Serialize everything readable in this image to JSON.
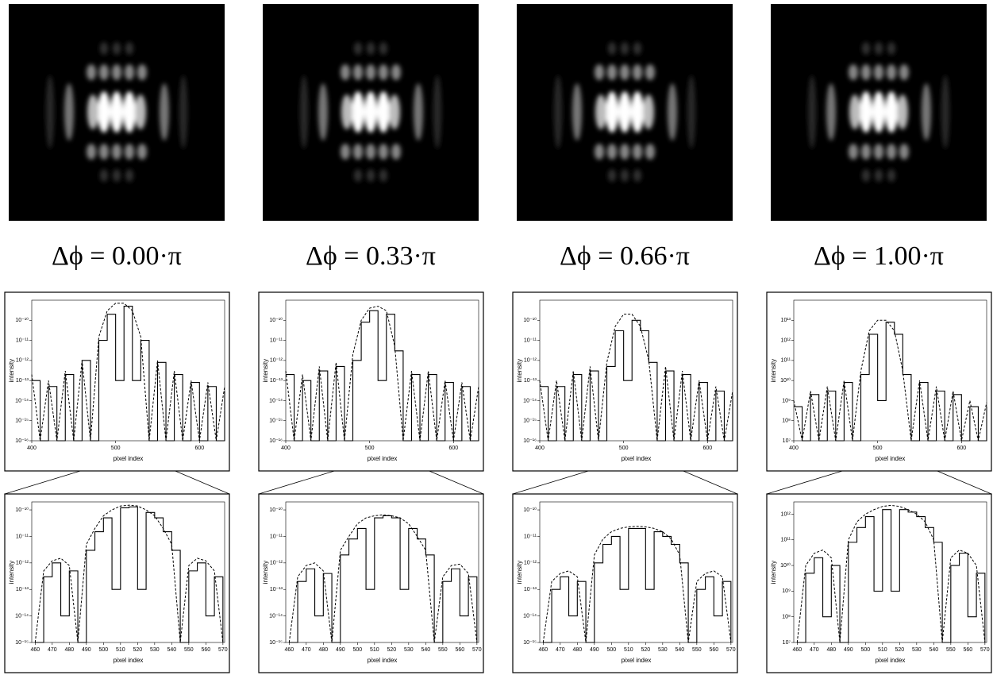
{
  "labels": [
    "Δϕ = 0.00·π",
    "Δϕ = 0.33·π",
    "Δϕ = 0.66·π",
    "Δϕ = 1.00·π"
  ],
  "chart_data": [
    {
      "type": "line",
      "x_label": "pixel index",
      "y_label": "intensity",
      "log_y": true,
      "x": [
        400,
        410,
        420,
        430,
        440,
        450,
        460,
        470,
        480,
        490,
        500,
        510,
        520,
        530,
        540,
        550,
        560,
        570,
        580,
        590,
        600,
        610,
        620,
        630
      ],
      "xlim": [
        400,
        630
      ],
      "xticks": [
        400,
        500,
        600
      ],
      "ylim": [
        1e-16,
        1e-09
      ],
      "yticks": [
        {
          "value": 1e-16,
          "label": "10⁻¹⁶"
        },
        {
          "value": 1e-15,
          "label": "10⁻¹⁵"
        },
        {
          "value": 1e-14,
          "label": "10⁻¹⁴"
        },
        {
          "value": 1e-13,
          "label": "10⁻¹³"
        },
        {
          "value": 1e-12,
          "label": "10⁻¹²"
        },
        {
          "value": 1e-11,
          "label": "10⁻¹¹"
        },
        {
          "value": 1e-10,
          "label": "10⁻¹⁰"
        }
      ],
      "series": [
        {
          "style": "step",
          "color": "#000000",
          "values": [
            1e-13,
            1e-16,
            5e-14,
            1e-16,
            2e-13,
            1e-16,
            1e-12,
            1e-16,
            1e-11,
            2e-10,
            1e-13,
            5e-10,
            1e-13,
            1e-11,
            1e-16,
            8e-13,
            1e-16,
            2e-13,
            1e-16,
            8e-14,
            1e-16,
            5e-14,
            1e-16,
            3e-14
          ]
        },
        {
          "style": "dashed",
          "color": "#000000",
          "values": [
            2e-13,
            1e-16,
            1e-13,
            1e-16,
            3e-13,
            1e-16,
            1e-12,
            1e-16,
            1.5e-11,
            3e-10,
            7e-10,
            7e-10,
            3e-10,
            1.5e-11,
            1e-16,
            1e-12,
            1e-16,
            3e-13,
            1e-16,
            1e-13,
            1e-16,
            8e-14,
            1e-16,
            5e-14
          ]
        }
      ]
    },
    {
      "type": "line",
      "x_label": "pixel index",
      "y_label": "intensity",
      "log_y": true,
      "x": [
        400,
        410,
        420,
        430,
        440,
        450,
        460,
        470,
        480,
        490,
        500,
        510,
        520,
        530,
        540,
        550,
        560,
        570,
        580,
        590,
        600,
        610,
        620,
        630
      ],
      "xlim": [
        400,
        630
      ],
      "xticks": [
        400,
        500,
        600
      ],
      "ylim": [
        1e-16,
        1e-09
      ],
      "yticks": [
        {
          "value": 1e-16,
          "label": "10⁻¹⁶"
        },
        {
          "value": 1e-15,
          "label": "10⁻¹⁵"
        },
        {
          "value": 1e-14,
          "label": "10⁻¹⁴"
        },
        {
          "value": 1e-13,
          "label": "10⁻¹³"
        },
        {
          "value": 1e-12,
          "label": "10⁻¹²"
        },
        {
          "value": 1e-11,
          "label": "10⁻¹¹"
        },
        {
          "value": 1e-10,
          "label": "10⁻¹⁰"
        }
      ],
      "series": [
        {
          "style": "step",
          "color": "#000000",
          "values": [
            2e-13,
            1e-16,
            1e-13,
            1e-16,
            3e-13,
            1e-16,
            5e-13,
            1e-16,
            1e-12,
            8e-11,
            3e-10,
            1e-13,
            2e-10,
            3e-12,
            1e-16,
            2e-13,
            1e-16,
            2e-13,
            1e-16,
            8e-14,
            1e-16,
            5e-14,
            1e-16,
            3e-14
          ]
        },
        {
          "style": "dashed",
          "color": "#000000",
          "values": [
            3e-13,
            1e-16,
            2e-13,
            1e-16,
            5e-13,
            1e-16,
            8e-13,
            1e-16,
            2e-12,
            1e-10,
            4e-10,
            5e-10,
            3e-10,
            5e-12,
            1e-16,
            3e-13,
            1e-16,
            3e-13,
            1e-16,
            1e-13,
            1e-16,
            8e-14,
            1e-16,
            5e-14
          ]
        }
      ]
    },
    {
      "type": "line",
      "x_label": "pixel index",
      "y_label": "intensity",
      "log_y": true,
      "x": [
        400,
        410,
        420,
        430,
        440,
        450,
        460,
        470,
        480,
        490,
        500,
        510,
        520,
        530,
        540,
        550,
        560,
        570,
        580,
        590,
        600,
        610,
        620,
        630
      ],
      "xlim": [
        400,
        630
      ],
      "xticks": [
        400,
        500,
        600
      ],
      "ylim": [
        1e-16,
        1e-09
      ],
      "yticks": [
        {
          "value": 1e-16,
          "label": "10⁻¹⁶"
        },
        {
          "value": 1e-15,
          "label": "10⁻¹⁵"
        },
        {
          "value": 1e-14,
          "label": "10⁻¹⁴"
        },
        {
          "value": 1e-13,
          "label": "10⁻¹³"
        },
        {
          "value": 1e-12,
          "label": "10⁻¹²"
        },
        {
          "value": 1e-11,
          "label": "10⁻¹¹"
        },
        {
          "value": 1e-10,
          "label": "10⁻¹⁰"
        }
      ],
      "series": [
        {
          "style": "step",
          "color": "#000000",
          "values": [
            5e-14,
            1e-16,
            5e-14,
            1e-16,
            2e-13,
            1e-16,
            3e-13,
            1e-16,
            5e-13,
            3e-11,
            1e-13,
            1e-10,
            3e-11,
            8e-13,
            1e-16,
            3e-13,
            1e-16,
            2e-13,
            1e-16,
            8e-14,
            1e-16,
            3e-14,
            1e-16,
            2e-14
          ]
        },
        {
          "style": "dashed",
          "color": "#000000",
          "values": [
            1e-13,
            1e-16,
            1e-13,
            1e-16,
            3e-13,
            1e-16,
            5e-13,
            1e-16,
            8e-13,
            5e-11,
            2e-10,
            2e-10,
            5e-11,
            1e-12,
            1e-16,
            5e-13,
            1e-16,
            3e-13,
            1e-16,
            1e-13,
            1e-16,
            5e-14,
            1e-16,
            3e-14
          ]
        }
      ]
    },
    {
      "type": "line",
      "x_label": "pixel index",
      "y_label": "intensity",
      "log_y": true,
      "x": [
        400,
        410,
        420,
        430,
        440,
        450,
        460,
        470,
        480,
        490,
        500,
        510,
        520,
        530,
        540,
        550,
        560,
        570,
        580,
        590,
        600,
        610,
        620,
        630
      ],
      "xlim": [
        400,
        630
      ],
      "xticks": [
        400,
        500,
        600
      ],
      "ylim": [
        10000000.0,
        100000000000000.0
      ],
      "yticks": [
        {
          "value": 10000000.0,
          "label": "10⁷"
        },
        {
          "value": 100000000.0,
          "label": "10⁸"
        },
        {
          "value": 1000000000.0,
          "label": "10⁹"
        },
        {
          "value": 10000000000.0,
          "label": "10¹⁰"
        },
        {
          "value": 100000000000.0,
          "label": "10¹¹"
        },
        {
          "value": 1000000000000.0,
          "label": "10¹²"
        },
        {
          "value": 10000000000000.0,
          "label": "10¹³"
        }
      ],
      "series": [
        {
          "style": "step",
          "color": "#000000",
          "values": [
            500000000.0,
            10000000.0,
            2000000000.0,
            10000000.0,
            3000000000.0,
            10000000.0,
            8000000000.0,
            10000000.0,
            20000000000.0,
            2000000000000.0,
            1000000000.0,
            8000000000000.0,
            2000000000000.0,
            20000000000.0,
            10000000.0,
            8000000000.0,
            10000000.0,
            3000000000.0,
            10000000.0,
            2000000000.0,
            10000000.0,
            500000000.0,
            10000000.0,
            500000000.0
          ]
        },
        {
          "style": "dashed",
          "color": "#000000",
          "values": [
            1000000000.0,
            10000000.0,
            3000000000.0,
            10000000.0,
            5000000000.0,
            10000000.0,
            10000000000.0,
            10000000.0,
            30000000000.0,
            3000000000000.0,
            10000000000000.0,
            10000000000000.0,
            3000000000000.0,
            30000000000.0,
            10000000.0,
            10000000000.0,
            10000000.0,
            5000000000.0,
            10000000.0,
            3000000000.0,
            10000000.0,
            1000000000.0,
            10000000.0,
            800000000.0
          ]
        }
      ]
    },
    {
      "type": "line",
      "x_label": "pixel index",
      "y_label": "intensity",
      "log_y": true,
      "x": [
        460,
        465,
        470,
        475,
        480,
        485,
        490,
        495,
        500,
        505,
        510,
        515,
        520,
        525,
        530,
        535,
        540,
        545,
        550,
        555,
        560,
        565,
        570
      ],
      "xlim": [
        458,
        571
      ],
      "xticks": [
        460,
        470,
        480,
        490,
        500,
        510,
        520,
        530,
        540,
        550,
        560,
        570
      ],
      "ylim": [
        1e-15,
        2e-10
      ],
      "yticks": [
        {
          "value": 1e-15,
          "label": "10⁻¹⁵"
        },
        {
          "value": 1e-14,
          "label": "10⁻¹⁴"
        },
        {
          "value": 1e-13,
          "label": "10⁻¹³"
        },
        {
          "value": 1e-12,
          "label": "10⁻¹²"
        },
        {
          "value": 1e-11,
          "label": "10⁻¹¹"
        },
        {
          "value": 1e-10,
          "label": "10⁻¹⁰"
        }
      ],
      "series": [
        {
          "style": "step",
          "color": "#000000",
          "values": [
            1e-15,
            3e-13,
            1e-12,
            1e-14,
            5e-13,
            1e-15,
            3e-12,
            1.5e-11,
            5e-11,
            1e-13,
            1.2e-10,
            1.3e-10,
            1e-13,
            8e-11,
            5e-11,
            1.5e-11,
            3e-12,
            1e-15,
            5e-13,
            1e-12,
            1e-14,
            3e-13,
            1e-15
          ]
        },
        {
          "style": "dashed",
          "color": "#000000",
          "values": [
            1e-15,
            5e-13,
            1.2e-12,
            1.5e-12,
            8e-13,
            1e-15,
            5e-12,
            2e-11,
            6e-11,
            1e-10,
            1.4e-10,
            1.5e-10,
            1.4e-10,
            1e-10,
            6e-11,
            2e-11,
            5e-12,
            1e-15,
            8e-13,
            1.5e-12,
            1.2e-12,
            5e-13,
            1e-15
          ]
        }
      ]
    },
    {
      "type": "line",
      "x_label": "pixel index",
      "y_label": "intensity",
      "log_y": true,
      "x": [
        460,
        465,
        470,
        475,
        480,
        485,
        490,
        495,
        500,
        505,
        510,
        515,
        520,
        525,
        530,
        535,
        540,
        545,
        550,
        555,
        560,
        565,
        570
      ],
      "xlim": [
        458,
        571
      ],
      "xticks": [
        460,
        470,
        480,
        490,
        500,
        510,
        520,
        530,
        540,
        550,
        560,
        570
      ],
      "ylim": [
        1e-15,
        2e-10
      ],
      "yticks": [
        {
          "value": 1e-15,
          "label": "10⁻¹⁵"
        },
        {
          "value": 1e-14,
          "label": "10⁻¹⁴"
        },
        {
          "value": 1e-13,
          "label": "10⁻¹³"
        },
        {
          "value": 1e-12,
          "label": "10⁻¹²"
        },
        {
          "value": 1e-11,
          "label": "10⁻¹¹"
        },
        {
          "value": 1e-10,
          "label": "10⁻¹⁰"
        }
      ],
      "series": [
        {
          "style": "step",
          "color": "#000000",
          "values": [
            1e-15,
            2e-13,
            6e-13,
            1e-14,
            4e-13,
            1e-15,
            2e-12,
            8e-12,
            2e-11,
            1e-13,
            5e-11,
            6e-11,
            5e-11,
            1e-13,
            2e-11,
            8e-12,
            2e-12,
            1e-15,
            2e-13,
            6e-13,
            1e-14,
            3e-13,
            1e-15
          ]
        },
        {
          "style": "dashed",
          "color": "#000000",
          "values": [
            1e-15,
            3e-13,
            8e-13,
            1e-12,
            5e-13,
            1e-15,
            3e-12,
            1e-11,
            3e-11,
            5e-11,
            6e-11,
            6.5e-11,
            6e-11,
            5e-11,
            3e-11,
            1e-11,
            3e-12,
            1e-15,
            3e-13,
            8e-13,
            9e-13,
            4e-13,
            1e-15
          ]
        }
      ]
    },
    {
      "type": "line",
      "x_label": "pixel index",
      "y_label": "intensity",
      "log_y": true,
      "x": [
        460,
        465,
        470,
        475,
        480,
        485,
        490,
        495,
        500,
        505,
        510,
        515,
        520,
        525,
        530,
        535,
        540,
        545,
        550,
        555,
        560,
        565,
        570
      ],
      "xlim": [
        458,
        571
      ],
      "xticks": [
        460,
        470,
        480,
        490,
        500,
        510,
        520,
        530,
        540,
        550,
        560,
        570
      ],
      "ylim": [
        1e-15,
        2e-10
      ],
      "yticks": [
        {
          "value": 1e-15,
          "label": "10⁻¹⁵"
        },
        {
          "value": 1e-14,
          "label": "10⁻¹⁴"
        },
        {
          "value": 1e-13,
          "label": "10⁻¹³"
        },
        {
          "value": 1e-12,
          "label": "10⁻¹²"
        },
        {
          "value": 1e-11,
          "label": "10⁻¹¹"
        },
        {
          "value": 1e-10,
          "label": "10⁻¹⁰"
        }
      ],
      "series": [
        {
          "style": "step",
          "color": "#000000",
          "values": [
            1e-15,
            1e-13,
            3e-13,
            1e-14,
            2e-13,
            1e-15,
            1e-12,
            5e-12,
            1e-11,
            1e-13,
            2e-11,
            2e-11,
            1e-13,
            1.5e-11,
            1e-11,
            5e-12,
            1e-12,
            1e-15,
            1e-13,
            3e-13,
            1e-14,
            2e-13,
            1e-15
          ]
        },
        {
          "style": "dashed",
          "color": "#000000",
          "values": [
            1e-15,
            2e-13,
            4e-13,
            5e-13,
            3e-13,
            1e-15,
            2e-12,
            8e-12,
            1.5e-11,
            2e-11,
            2.3e-11,
            2.4e-11,
            2.3e-11,
            2e-11,
            1.5e-11,
            8e-12,
            2e-12,
            1e-15,
            2e-13,
            4e-13,
            5e-13,
            3e-13,
            1e-15
          ]
        }
      ]
    },
    {
      "type": "line",
      "x_label": "pixel index",
      "y_label": "intensity",
      "log_y": true,
      "x": [
        460,
        465,
        470,
        475,
        480,
        485,
        490,
        495,
        500,
        505,
        510,
        515,
        520,
        525,
        530,
        535,
        540,
        545,
        550,
        555,
        560,
        565,
        570
      ],
      "xlim": [
        458,
        571
      ],
      "xticks": [
        460,
        470,
        480,
        490,
        500,
        510,
        520,
        530,
        540,
        550,
        560,
        570
      ],
      "ylim": [
        10000000.0,
        3000000000000.0
      ],
      "yticks": [
        {
          "value": 10000000.0,
          "label": "10⁷"
        },
        {
          "value": 100000000.0,
          "label": "10⁸"
        },
        {
          "value": 1000000000.0,
          "label": "10⁹"
        },
        {
          "value": 10000000000.0,
          "label": "10¹⁰"
        },
        {
          "value": 100000000000.0,
          "label": "10¹¹"
        },
        {
          "value": 1000000000000.0,
          "label": "10¹²"
        }
      ],
      "series": [
        {
          "style": "step",
          "color": "#000000",
          "values": [
            10000000.0,
            5000000000.0,
            20000000000.0,
            100000000.0,
            10000000000.0,
            10000000.0,
            80000000000.0,
            300000000000.0,
            800000000000.0,
            1000000000.0,
            1500000000000.0,
            1000000000.0,
            1500000000000.0,
            1200000000000.0,
            800000000000.0,
            300000000000.0,
            80000000000.0,
            10000000.0,
            10000000000.0,
            30000000000.0,
            100000000.0,
            5000000000.0,
            10000000.0
          ]
        },
        {
          "style": "dashed",
          "color": "#000000",
          "values": [
            10000000.0,
            10000000000.0,
            30000000000.0,
            40000000000.0,
            20000000000.0,
            10000000.0,
            100000000000.0,
            500000000000.0,
            1000000000000.0,
            1500000000000.0,
            2000000000000.0,
            2200000000000.0,
            2000000000000.0,
            1500000000000.0,
            1000000000000.0,
            500000000000.0,
            100000000000.0,
            10000000.0,
            20000000000.0,
            40000000000.0,
            30000000000.0,
            10000000000.0,
            10000000.0
          ]
        }
      ]
    }
  ]
}
